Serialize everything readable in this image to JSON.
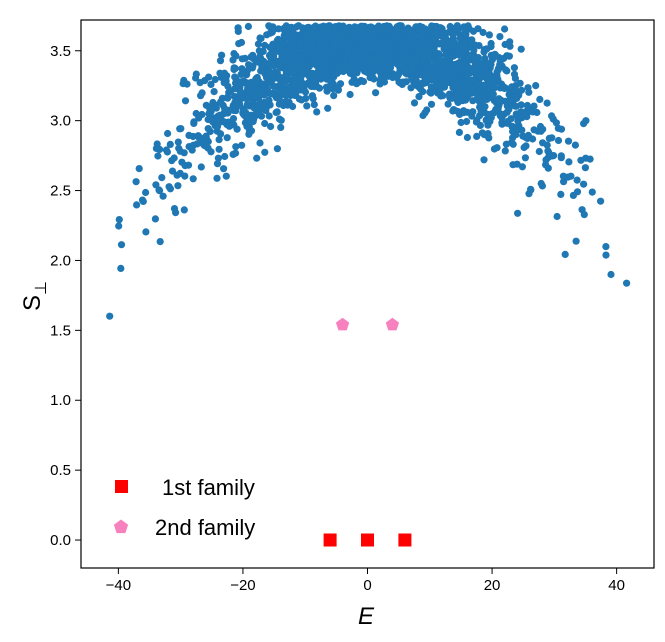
{
  "chart_data": {
    "type": "scatter",
    "xlabel": "E",
    "ylabel_main": "S",
    "ylabel_sub": "⊥",
    "xlim": [
      -46,
      46
    ],
    "ylim": [
      -0.2,
      3.72
    ],
    "x_ticks": [
      -40,
      -20,
      0,
      20,
      40
    ],
    "x_tick_labels": [
      "−40",
      "−20",
      "0",
      "20",
      "40"
    ],
    "y_ticks": [
      0.0,
      0.5,
      1.0,
      1.5,
      2.0,
      2.5,
      3.0,
      3.5
    ],
    "y_tick_labels": [
      "0.0",
      "0.5",
      "1.0",
      "1.5",
      "2.0",
      "2.5",
      "3.0",
      "3.5"
    ],
    "grid": false,
    "legend_placement": "bottom-left",
    "background_series": {
      "color": "#1f77b4",
      "description_points": "dense cloud of about 2500 points forming an inverted parabola",
      "approx_count": 2500,
      "x_range": [
        -42,
        42
      ],
      "peak_y": 3.55,
      "edge_y": 2.0,
      "y_spread": 0.18
    },
    "series": [
      {
        "name": "1st  family",
        "marker": "square",
        "color": "#ff0000",
        "x": [
          -6,
          0,
          6
        ],
        "y": [
          0.0,
          0.0,
          0.0
        ]
      },
      {
        "name": "2nd family",
        "marker": "pentagon",
        "color": "#f781bf",
        "x": [
          -4,
          4
        ],
        "y": [
          1.54,
          1.54
        ]
      }
    ]
  }
}
